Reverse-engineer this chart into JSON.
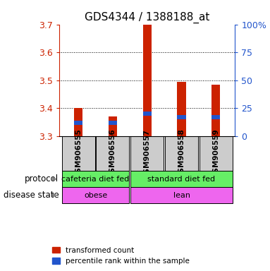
{
  "title": "GDS4344 / 1388188_at",
  "samples": [
    "GSM906555",
    "GSM906556",
    "GSM906557",
    "GSM906558",
    "GSM906559"
  ],
  "ylim_left": [
    3.3,
    3.7
  ],
  "ylim_right": [
    0,
    100
  ],
  "yticks_left": [
    3.3,
    3.4,
    3.5,
    3.6,
    3.7
  ],
  "yticks_right": [
    0,
    25,
    50,
    75,
    100
  ],
  "ytick_right_labels": [
    "0",
    "25",
    "50",
    "75",
    "100%"
  ],
  "bar_bottom": 3.3,
  "red_tops": [
    3.4,
    3.37,
    3.7,
    3.495,
    3.485
  ],
  "blue_values_pct": [
    12,
    12,
    20,
    17,
    17
  ],
  "bar_width": 0.25,
  "red_color": "#cc2200",
  "blue_color": "#2255cc",
  "protocol_labels": [
    "cafeteria diet fed",
    "standard diet fed"
  ],
  "protocol_color": "#66ee66",
  "disease_labels": [
    "obese",
    "lean"
  ],
  "disease_color": "#ee66ee",
  "label_row_bg": "#cccccc",
  "left_axis_color": "#cc2200",
  "right_axis_color": "#2255cc",
  "legend_red_label": "transformed count",
  "legend_blue_label": "percentile rank within the sample",
  "protocol_text": "protocol",
  "disease_text": "disease state",
  "figsize": [
    3.83,
    3.84
  ],
  "dpi": 100
}
